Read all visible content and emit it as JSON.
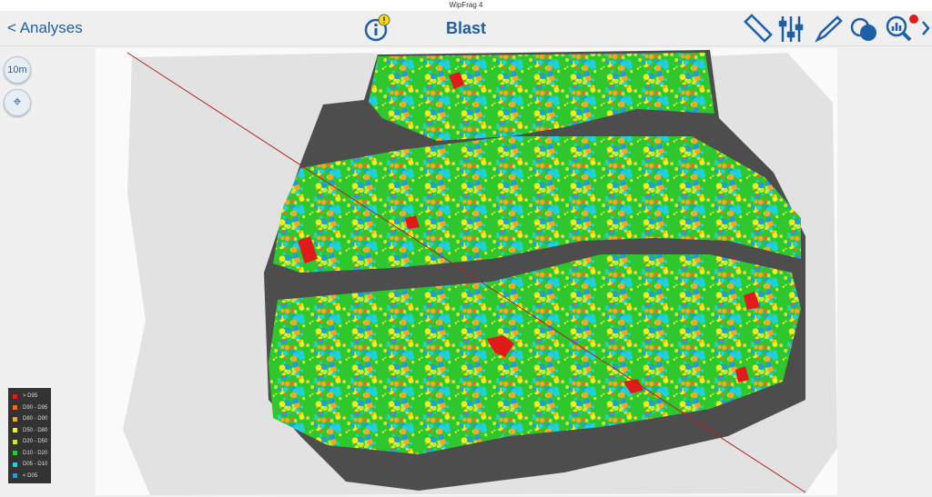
{
  "window": {
    "title": "WipFrag 4"
  },
  "toolbar": {
    "back": "< Analyses",
    "title": "Blast"
  },
  "map": {
    "scale_button": "10m"
  },
  "legend": {
    "items": [
      {
        "label": "> D95",
        "color": "#e31a1c"
      },
      {
        "label": "D90 - D95",
        "color": "#f26b1d"
      },
      {
        "label": "D80 - D90",
        "color": "#f5a623"
      },
      {
        "label": "D50 - D80",
        "color": "#f2f21a"
      },
      {
        "label": "D20 - D50",
        "color": "#c8e63c"
      },
      {
        "label": "D10 - D20",
        "color": "#2ec82e"
      },
      {
        "label": "D05 - D10",
        "color": "#1ed2e6"
      },
      {
        "label": "< D05",
        "color": "#1e9be6"
      }
    ]
  }
}
